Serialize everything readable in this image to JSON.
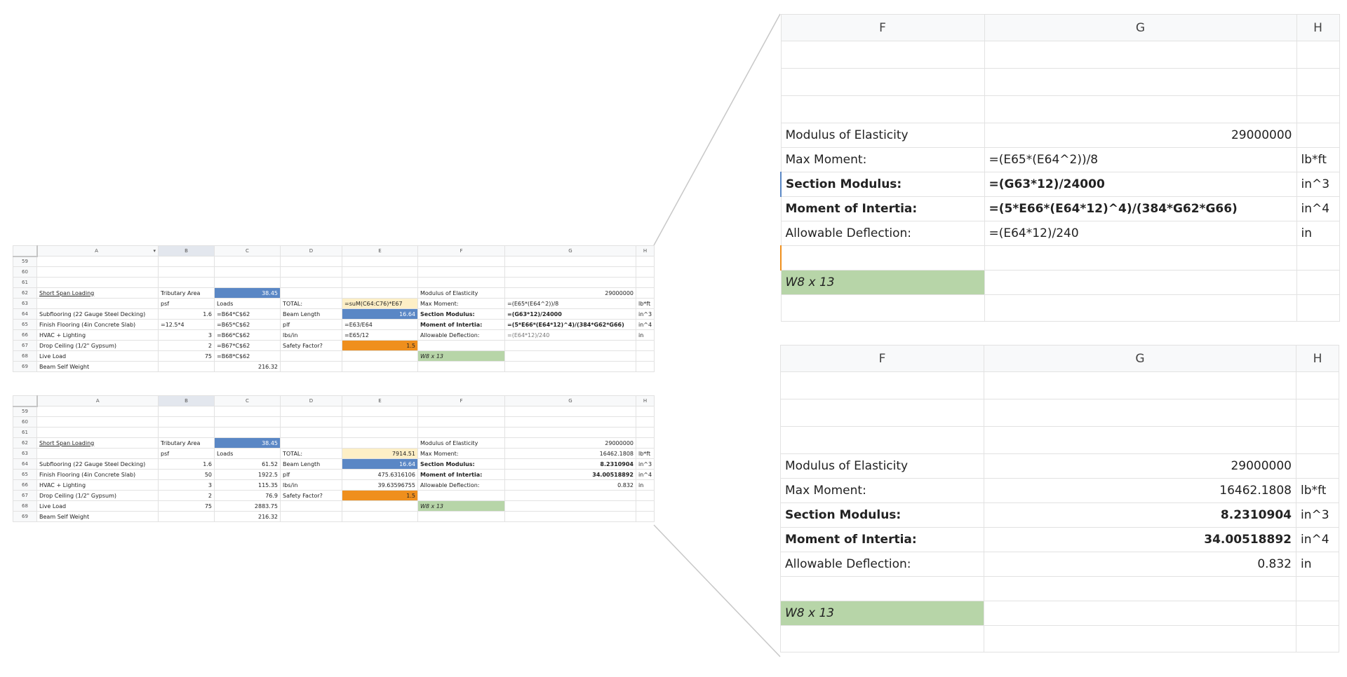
{
  "columns": [
    "A",
    "B",
    "C",
    "D",
    "E",
    "F",
    "G",
    "H"
  ],
  "row_numbers": [
    "59",
    "60",
    "61",
    "62",
    "63",
    "64",
    "65",
    "66",
    "67",
    "68",
    "69"
  ],
  "formulas_sheet": {
    "filter_arrow": "▾",
    "r62": {
      "a": "Short Span Loading",
      "b": "Tributary Area",
      "c": "38.45",
      "f": "Modulus of Elasticity",
      "g": "29000000"
    },
    "r63": {
      "b": "psf",
      "c": "Loads",
      "d": "TOTAL:",
      "e": "=suM(C64:C76)*E67",
      "f": "Max Moment:",
      "g": "=(E65*(E64^2))/8",
      "h": "lb*ft"
    },
    "r64": {
      "a": "Subflooring (22 Gauge Steel Decking)",
      "b": "1.6",
      "c": "=B64*C$62",
      "d": "Beam Length",
      "e": "16.64",
      "f": "Section Modulus:",
      "g": "=(G63*12)/24000",
      "h": "in^3"
    },
    "r65": {
      "a": "Finish Flooring (4in Concrete Slab)",
      "b": "=12.5*4",
      "c": "=B65*C$62",
      "d": "plf",
      "e": "=E63/E64",
      "f": "Moment of Intertia:",
      "g": "=(5*E66*(E64*12)^4)/(384*G62*G66)",
      "h": "in^4"
    },
    "r66": {
      "a": "HVAC + Lighting",
      "b": "3",
      "c": "=B66*C$62",
      "d": "lbs/in",
      "e": "=E65/12",
      "f": "Allowable Deflection:",
      "g": "=(E64*12)/240",
      "h": "in"
    },
    "r67": {
      "a": "Drop Ceiling (1/2\" Gypsum)",
      "b": "2",
      "c": "=B67*C$62",
      "d": "Safety Factor?",
      "e": "1.5"
    },
    "r68": {
      "a": "Live Load",
      "b": "75",
      "c": "=B68*C$62",
      "f": "W8 x 13"
    },
    "r69": {
      "a": "Beam Self Weight",
      "c": "216.32"
    }
  },
  "values_sheet": {
    "r62": {
      "a": "Short Span Loading",
      "b": "Tributary Area",
      "c": "38.45",
      "f": "Modulus of Elasticity",
      "g": "29000000"
    },
    "r63": {
      "b": "psf",
      "c": "Loads",
      "d": "TOTAL:",
      "e": "7914.51",
      "f": "Max Moment:",
      "g": "16462.1808",
      "h": "lb*ft"
    },
    "r64": {
      "a": "Subflooring (22 Gauge Steel Decking)",
      "b": "1.6",
      "c": "61.52",
      "d": "Beam Length",
      "e": "16.64",
      "f": "Section Modulus:",
      "g": "8.2310904",
      "h": "in^3"
    },
    "r65": {
      "a": "Finish Flooring (4in Concrete Slab)",
      "b": "50",
      "c": "1922.5",
      "d": "plf",
      "e": "475.6316106",
      "f": "Moment of Intertia:",
      "g": "34.00518892",
      "h": "in^4"
    },
    "r66": {
      "a": "HVAC + Lighting",
      "b": "3",
      "c": "115.35",
      "d": "lbs/in",
      "e": "39.63596755",
      "f": "Allowable Deflection:",
      "g": "0.832",
      "h": "in"
    },
    "r67": {
      "a": "Drop Ceiling (1/2\" Gypsum)",
      "b": "2",
      "c": "76.9",
      "d": "Safety Factor?",
      "e": "1.5"
    },
    "r68": {
      "a": "Live Load",
      "b": "75",
      "c": "2883.75",
      "f": "W8 x 13"
    },
    "r69": {
      "a": "Beam Self Weight",
      "c": "216.32"
    }
  },
  "zoom_formulas": {
    "cols": [
      "F",
      "G",
      "H"
    ],
    "modulus_label": "Modulus of Elasticity",
    "modulus_value": "29000000",
    "moment_label": "Max Moment:",
    "moment_value": "=(E65*(E64^2))/8",
    "moment_unit": "lb*ft",
    "section_label": "Section Modulus:",
    "section_value": "=(G63*12)/24000",
    "section_unit": "in^3",
    "inertia_label": "Moment of Intertia:",
    "inertia_value": "=(5*E66*(E64*12)^4)/(384*G62*G66)",
    "inertia_unit": "in^4",
    "deflection_label": "Allowable Deflection:",
    "deflection_value": "=(E64*12)/240",
    "deflection_unit": "in",
    "beam": "W8 x 13"
  },
  "zoom_values": {
    "cols": [
      "F",
      "G",
      "H"
    ],
    "modulus_label": "Modulus of Elasticity",
    "modulus_value": "29000000",
    "moment_label": "Max Moment:",
    "moment_value": "16462.1808",
    "moment_unit": "lb*ft",
    "section_label": "Section Modulus:",
    "section_value": "8.2310904",
    "section_unit": "in^3",
    "inertia_label": "Moment of Intertia:",
    "inertia_value": "34.00518892",
    "inertia_unit": "in^4",
    "deflection_label": "Allowable Deflection:",
    "deflection_value": "0.832",
    "deflection_unit": "in",
    "beam": "W8 x 13"
  },
  "colors": {
    "header_bg": "#f8f9fa",
    "grid": "#e2e2e2",
    "blue": "#5a87c5",
    "orange": "#ef8f1d",
    "green": "#b7d5a8",
    "cream": "#fdefc6"
  }
}
